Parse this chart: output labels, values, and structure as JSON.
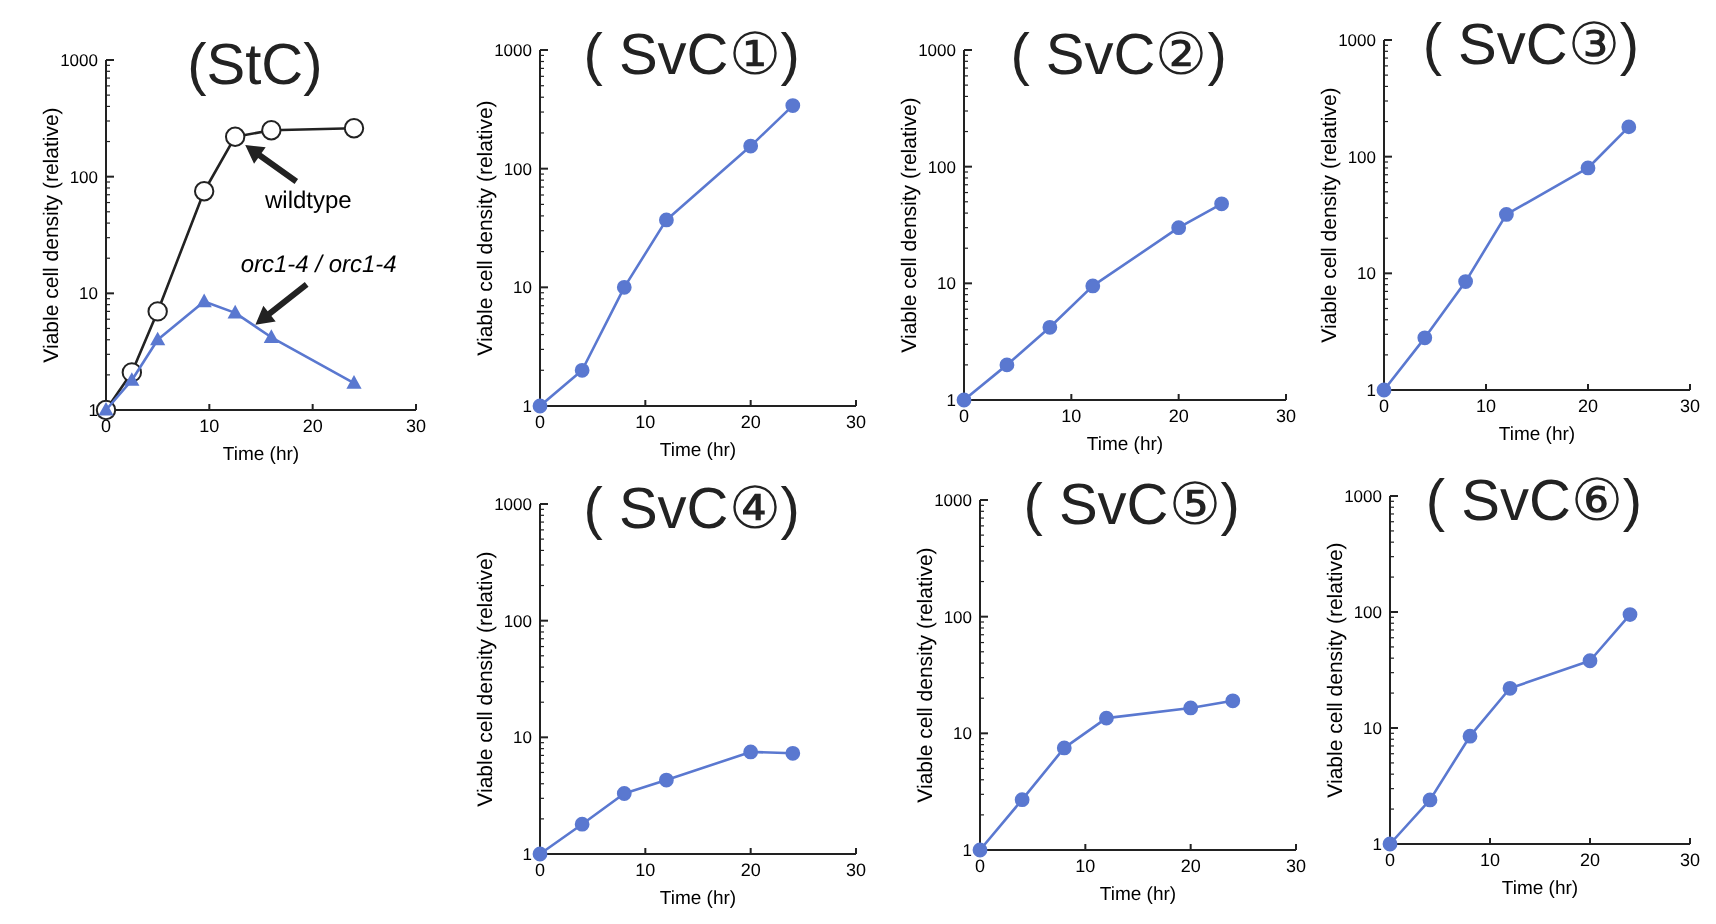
{
  "chart_data": [
    {
      "type": "line",
      "title": "(StC)",
      "xlabel": "Time (hr)",
      "ylabel": "Viable cell density (relative)",
      "x": [
        0,
        2.5,
        5,
        9.5,
        12.5,
        16,
        24
      ],
      "xlim": [
        0,
        30
      ],
      "xticks": [
        0,
        10,
        20,
        30
      ],
      "ylim": [
        1,
        1000
      ],
      "yticks": [
        1,
        10,
        100,
        1000
      ],
      "log": "y",
      "series": [
        {
          "color": "#222222",
          "marker": "circle",
          "values": [
            1,
            2.1,
            7,
            75,
            220,
            250,
            260
          ]
        },
        {
          "color": "#5a78d0",
          "marker": "triangle",
          "values": [
            1,
            1.8,
            4,
            8.5,
            6.8,
            4.2,
            1.7
          ]
        }
      ],
      "annotations": [
        {
          "text": "wildtype",
          "x": 13,
          "y": 200
        },
        {
          "text": "orc1-4 / orc1-4",
          "x": 14,
          "y": 5
        }
      ]
    },
    {
      "type": "line",
      "title": "( SvC①)",
      "xlabel": "Time (hr)",
      "ylabel": "Viable cell density (relative)",
      "x": [
        0,
        4,
        8,
        12,
        20,
        24
      ],
      "xlim": [
        0,
        30
      ],
      "xticks": [
        0,
        10,
        20,
        30
      ],
      "ylim": [
        1,
        1000
      ],
      "yticks": [
        1,
        10,
        100,
        1000
      ],
      "log": "y",
      "marker": "circle",
      "series": [
        {
          "color": "#5a78d0",
          "values": [
            1,
            2,
            10,
            37,
            155,
            340
          ]
        }
      ]
    },
    {
      "type": "line",
      "title": "( SvC②)",
      "xlabel": "Time (hr)",
      "ylabel": "Viable cell density (relative)",
      "x": [
        0,
        4,
        8,
        12,
        20,
        24
      ],
      "xlim": [
        0,
        30
      ],
      "xticks": [
        0,
        10,
        20,
        30
      ],
      "ylim": [
        1,
        1000
      ],
      "yticks": [
        1,
        10,
        100,
        1000
      ],
      "log": "y",
      "marker": "circle",
      "series": [
        {
          "color": "#5a78d0",
          "values": [
            1,
            2,
            4.2,
            9.5,
            30,
            48
          ]
        }
      ]
    },
    {
      "type": "line",
      "title": "( SvC③)",
      "xlabel": "Time (hr)",
      "ylabel": "Viable cell density (relative)",
      "x": [
        0,
        4,
        8,
        12,
        20,
        24
      ],
      "xlim": [
        0,
        30
      ],
      "xticks": [
        0,
        10,
        20,
        30
      ],
      "ylim": [
        1,
        1000
      ],
      "yticks": [
        1,
        10,
        100,
        1000
      ],
      "log": "y",
      "marker": "circle",
      "series": [
        {
          "color": "#5a78d0",
          "values": [
            1,
            2.8,
            8.5,
            32,
            80,
            180
          ]
        }
      ]
    },
    {
      "type": "line",
      "title": "( SvC④)",
      "xlabel": "Time (hr)",
      "ylabel": "Viable cell density (relative)",
      "x": [
        0,
        4,
        8,
        12,
        20,
        24
      ],
      "xlim": [
        0,
        30
      ],
      "xticks": [
        0,
        10,
        20,
        30
      ],
      "ylim": [
        1,
        1000
      ],
      "yticks": [
        1,
        10,
        100,
        1000
      ],
      "log": "y",
      "marker": "circle",
      "series": [
        {
          "color": "#5a78d0",
          "values": [
            1,
            1.8,
            3.3,
            4.3,
            7.5,
            7.3
          ]
        }
      ]
    },
    {
      "type": "line",
      "title": "( SvC⑤)",
      "xlabel": "Time (hr)",
      "ylabel": "Viable cell density (relative)",
      "x": [
        0,
        4,
        8,
        12,
        20,
        24
      ],
      "xlim": [
        0,
        30
      ],
      "xticks": [
        0,
        10,
        20,
        30
      ],
      "ylim": [
        1,
        1000
      ],
      "yticks": [
        1,
        10,
        100,
        1000
      ],
      "log": "y",
      "marker": "circle",
      "series": [
        {
          "color": "#5a78d0",
          "values": [
            1,
            2.7,
            7.5,
            13.5,
            16.5,
            19
          ]
        }
      ]
    },
    {
      "type": "line",
      "title": "( SvC⑥)",
      "xlabel": "Time (hr)",
      "ylabel": "Viable cell density (relative)",
      "x": [
        0,
        4,
        8,
        12,
        20,
        24
      ],
      "xlim": [
        0,
        30
      ],
      "xticks": [
        0,
        10,
        20,
        30
      ],
      "ylim": [
        1,
        1000
      ],
      "yticks": [
        1,
        10,
        100,
        1000
      ],
      "log": "y",
      "marker": "circle",
      "series": [
        {
          "color": "#5a78d0",
          "values": [
            1,
            2.4,
            8.5,
            22,
            38,
            95
          ]
        }
      ]
    }
  ]
}
